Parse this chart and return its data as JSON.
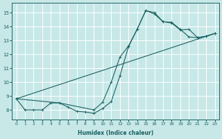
{
  "xlabel": "Humidex (Indice chaleur)",
  "bg_color": "#c8e8e8",
  "line_color": "#1a6060",
  "grid_color": "#b0d8d8",
  "xlim": [
    -0.5,
    23.5
  ],
  "ylim": [
    7.3,
    15.7
  ],
  "xticks": [
    0,
    1,
    2,
    3,
    4,
    5,
    6,
    7,
    8,
    9,
    10,
    11,
    12,
    13,
    14,
    15,
    16,
    17,
    18,
    19,
    20,
    21,
    22,
    23
  ],
  "yticks": [
    8,
    9,
    10,
    11,
    12,
    13,
    14,
    15
  ],
  "line1_x": [
    0,
    1,
    2,
    3,
    4,
    5,
    6,
    7,
    8,
    9,
    10,
    11,
    12,
    13,
    14,
    15,
    16,
    17,
    18,
    19,
    20,
    21,
    22,
    23
  ],
  "line1_y": [
    8.8,
    8.0,
    8.0,
    8.0,
    8.5,
    8.5,
    8.2,
    7.9,
    7.85,
    7.75,
    8.1,
    8.6,
    10.45,
    12.55,
    13.8,
    15.15,
    15.0,
    14.35,
    14.3,
    13.8,
    13.25,
    13.2,
    13.3,
    13.5
  ],
  "line2_x": [
    0,
    5,
    9,
    10,
    11,
    12,
    13,
    14,
    15,
    16,
    17,
    18,
    19,
    20,
    21,
    22,
    23
  ],
  "line2_y": [
    8.8,
    8.5,
    8.0,
    8.55,
    10.0,
    11.8,
    12.6,
    13.8,
    15.15,
    14.9,
    14.35,
    14.25,
    13.75,
    13.8,
    13.2,
    13.3,
    13.5
  ],
  "line3_x": [
    0,
    23
  ],
  "line3_y": [
    8.8,
    13.5
  ]
}
